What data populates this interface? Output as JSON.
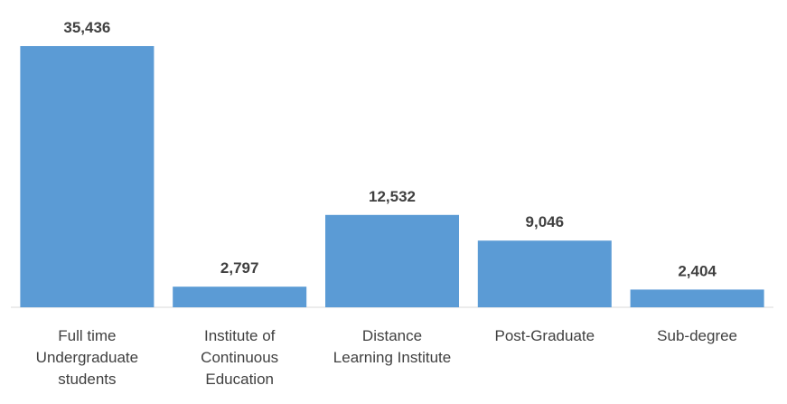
{
  "chart_data": {
    "type": "bar",
    "categories": [
      "Full time Undergraduate students",
      "Institute of Continuous Education",
      "Distance Learning Institute",
      "Post-Graduate",
      "Sub-degree"
    ],
    "values": [
      35436,
      2797,
      12532,
      9046,
      2404
    ],
    "value_labels": [
      "35,436",
      "2,797",
      "12,532",
      "9,046",
      "2,404"
    ],
    "color": "#5b9bd5"
  }
}
